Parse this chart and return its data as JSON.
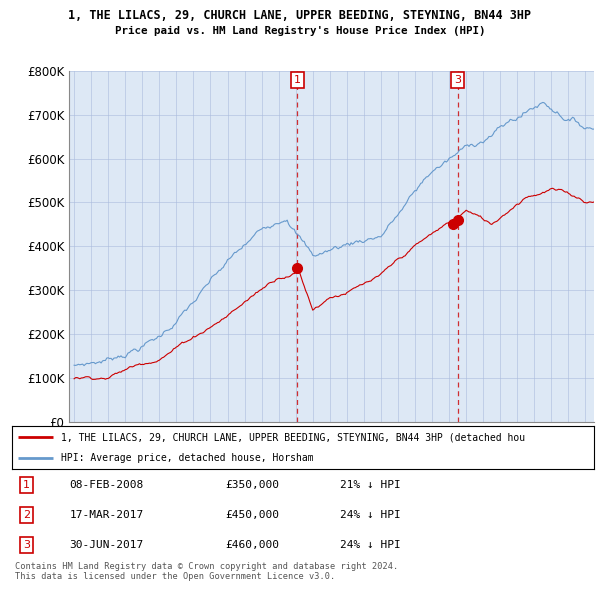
{
  "title1": "1, THE LILACS, 29, CHURCH LANE, UPPER BEEDING, STEYNING, BN44 3HP",
  "title2": "Price paid vs. HM Land Registry's House Price Index (HPI)",
  "ylim": [
    0,
    800000
  ],
  "yticks": [
    0,
    100000,
    200000,
    300000,
    400000,
    500000,
    600000,
    700000,
    800000
  ],
  "ytick_labels": [
    "£0",
    "£100K",
    "£200K",
    "£300K",
    "£400K",
    "£500K",
    "£600K",
    "£700K",
    "£800K"
  ],
  "xlim_start": 1994.7,
  "xlim_end": 2025.5,
  "hpi_color": "#6699cc",
  "price_color": "#cc0000",
  "chart_bg": "#dde8f5",
  "legend_label_red": "1, THE LILACS, 29, CHURCH LANE, UPPER BEEDING, STEYNING, BN44 3HP (detached hou",
  "legend_label_blue": "HPI: Average price, detached house, Horsham",
  "transactions": [
    {
      "num": 1,
      "date": "08-FEB-2008",
      "price": 350000,
      "year": 2008.1,
      "hpi_pct": "21% ↓ HPI",
      "show_vline": true
    },
    {
      "num": 2,
      "date": "17-MAR-2017",
      "price": 450000,
      "year": 2017.2,
      "hpi_pct": "24% ↓ HPI",
      "show_vline": false
    },
    {
      "num": 3,
      "date": "30-JUN-2017",
      "price": 460000,
      "year": 2017.5,
      "hpi_pct": "24% ↓ HPI",
      "show_vline": true
    }
  ],
  "footer1": "Contains HM Land Registry data © Crown copyright and database right 2024.",
  "footer2": "This data is licensed under the Open Government Licence v3.0.",
  "background_color": "#ffffff",
  "grid_color": "#aabbdd"
}
